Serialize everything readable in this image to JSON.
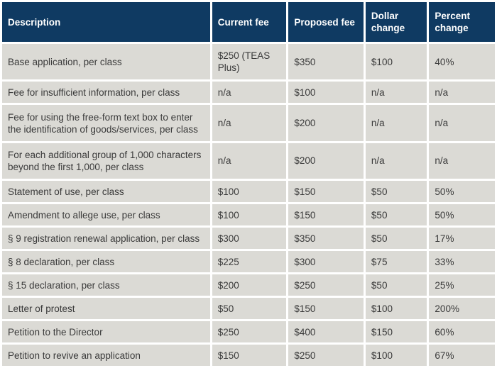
{
  "table": {
    "columns": [
      {
        "id": "description",
        "label": "Description"
      },
      {
        "id": "current-fee",
        "label": "Current fee"
      },
      {
        "id": "proposed-fee",
        "label": "Proposed fee"
      },
      {
        "id": "dollar-change",
        "label": "Dollar change"
      },
      {
        "id": "percent-change",
        "label": "Percent change"
      }
    ],
    "rows": [
      [
        "Base application, per class",
        "$250 (TEAS Plus)",
        "$350",
        "$100",
        "40%"
      ],
      [
        "Fee for insufficient information, per class",
        "n/a",
        "$100",
        "n/a",
        "n/a"
      ],
      [
        "Fee for using the free-form text box to enter the identification of goods/services, per class",
        "n/a",
        "$200",
        "n/a",
        "n/a"
      ],
      [
        "For each additional group of 1,000 characters beyond the first 1,000, per class",
        "n/a",
        "$200",
        "n/a",
        "n/a"
      ],
      [
        "Statement of use, per class",
        "$100",
        "$150",
        "$50",
        "50%"
      ],
      [
        "Amendment to allege use, per class",
        "$100",
        "$150",
        "$50",
        "50%"
      ],
      [
        "§ 9 registration renewal application, per class",
        "$300",
        "$350",
        "$50",
        "17%"
      ],
      [
        "§ 8 declaration, per class",
        "$225",
        "$300",
        "$75",
        "33%"
      ],
      [
        "§ 15 declaration, per class",
        "$200",
        "$250",
        "$50",
        "25%"
      ],
      [
        "Letter of protest",
        "$50",
        "$150",
        "$100",
        "200%"
      ],
      [
        "Petition to the Director",
        "$250",
        "$400",
        "$150",
        "60%"
      ],
      [
        "Petition to revive an application",
        "$150",
        "$250",
        "$100",
        "67%"
      ]
    ]
  },
  "colors": {
    "header_bg": "#0f3a62",
    "header_text": "#ffffff",
    "row_bg": "#dbdad5",
    "body_text": "#3a3a3a",
    "grid": "#ffffff"
  }
}
